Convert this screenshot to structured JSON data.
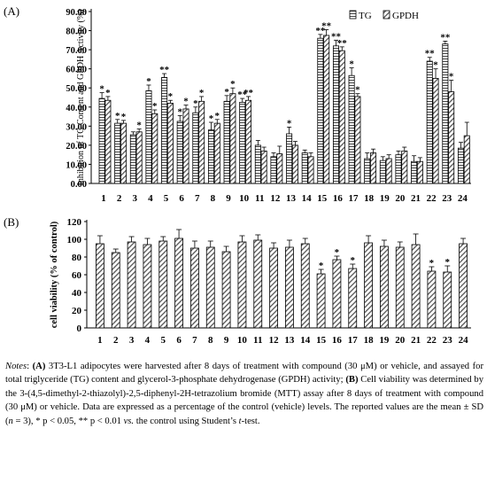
{
  "chart_data": [
    {
      "type": "bar",
      "panel_label": "(A)",
      "ylabel": "Inhibition of TG Content and GPDH Activity (%)",
      "ylim": [
        0,
        90
      ],
      "yticks": [
        "0.00",
        "10.00",
        "20.00",
        "30.00",
        "40.00",
        "50.00",
        "60.00",
        "70.00",
        "80.00",
        "90.00"
      ],
      "categories": [
        "1",
        "2",
        "3",
        "4",
        "5",
        "6",
        "7",
        "8",
        "9",
        "10",
        "11",
        "12",
        "13",
        "14",
        "15",
        "16",
        "17",
        "18",
        "19",
        "20",
        "21",
        "22",
        "23",
        "24"
      ],
      "legend_position": "top-right",
      "series": [
        {
          "name": "TG",
          "values": [
            44.5,
            31.5,
            25.5,
            48.5,
            55.5,
            32.5,
            37,
            28,
            43,
            42.5,
            20,
            14,
            26,
            16,
            76,
            72,
            56.5,
            13,
            12,
            15,
            11.5,
            64,
            73,
            18.5
          ],
          "errors": [
            3,
            2,
            1.5,
            3,
            2,
            3,
            3,
            4,
            3,
            2,
            2.5,
            2,
            3.5,
            1.5,
            2,
            3,
            4,
            3,
            2,
            2,
            3,
            2,
            1.5,
            3
          ],
          "sig": [
            "*",
            "*",
            "",
            "*",
            "**",
            "*",
            "*",
            "*",
            "*",
            "**",
            "",
            "",
            "*",
            "",
            "**",
            "**",
            "*",
            "",
            "",
            "",
            "",
            "**",
            "**",
            ""
          ]
        },
        {
          "name": "GPDH",
          "values": [
            43.5,
            31.5,
            27,
            36.5,
            42,
            39,
            43,
            31.5,
            47,
            43.5,
            17,
            15.5,
            20,
            14,
            77.5,
            69.5,
            45.5,
            16,
            13,
            17,
            11.5,
            55,
            48,
            25
          ],
          "errors": [
            2,
            1.5,
            1.5,
            2,
            1.5,
            2,
            2.5,
            2,
            3,
            2,
            2,
            4,
            2,
            2,
            3,
            2,
            1.5,
            2,
            2,
            2,
            2,
            5,
            6,
            7
          ],
          "sig": [
            "*",
            "*",
            "*",
            "*",
            "*",
            "*",
            "*",
            "*",
            "*",
            "**",
            "",
            "",
            "",
            "",
            "**",
            "**",
            "*",
            "",
            "",
            "",
            "",
            "*",
            "*",
            ""
          ]
        }
      ]
    },
    {
      "type": "bar",
      "panel_label": "(B)",
      "ylabel": "cell viability (% of control)",
      "ylim": [
        0,
        120
      ],
      "yticks": [
        "0",
        "20",
        "40",
        "60",
        "80",
        "100",
        "120"
      ],
      "categories": [
        "1",
        "2",
        "3",
        "4",
        "5",
        "6",
        "7",
        "8",
        "9",
        "10",
        "11",
        "12",
        "13",
        "14",
        "15",
        "16",
        "17",
        "18",
        "19",
        "20",
        "21",
        "22",
        "23",
        "24"
      ],
      "series": [
        {
          "values": [
            95,
            85,
            97,
            94,
            98,
            101,
            90,
            91,
            86,
            97,
            99,
            90,
            91,
            95,
            61,
            77,
            67,
            96,
            92,
            91,
            94,
            64,
            63,
            95
          ],
          "errors": [
            9,
            4,
            6,
            7,
            5,
            10,
            8,
            7,
            6,
            7,
            6,
            6,
            8,
            6,
            5,
            4,
            5,
            8,
            7,
            6,
            12,
            5,
            7,
            6
          ],
          "sig": [
            "",
            "",
            "",
            "",
            "",
            "",
            "",
            "",
            "",
            "",
            "",
            "",
            "",
            "",
            "*",
            "*",
            "*",
            "",
            "",
            "",
            "",
            "*",
            "*",
            ""
          ]
        }
      ]
    }
  ],
  "notes": {
    "label": "Notes",
    "t1": ": ",
    "b1": "(A)",
    "t2": " 3T3-L1 adipocytes were harvested after 8 days of treatment with compound (30 μM) or vehicle, and assayed for total triglyceride (TG) content and glycerol-3-phosphate dehydrogenase (GPDH) activity; ",
    "b2": "(B)",
    "t3": " Cell viability was determined by the 3-(4,5-dimethyl-2-thiazolyl)-2,5-diphenyl-2H-tetrazolium bromide (MTT) assay after 8 days of treatment with compound (30 μM) or vehicle. Data are expressed as a percentage of the control (vehicle) levels. The reported values are the mean ± SD (",
    "n": "n",
    "t4": " = 3), * p < 0.05, ** p < 0.01 ",
    "vs": "vs.",
    "t5": " the control using Student’s ",
    "t": "t",
    "t6": "-test."
  }
}
